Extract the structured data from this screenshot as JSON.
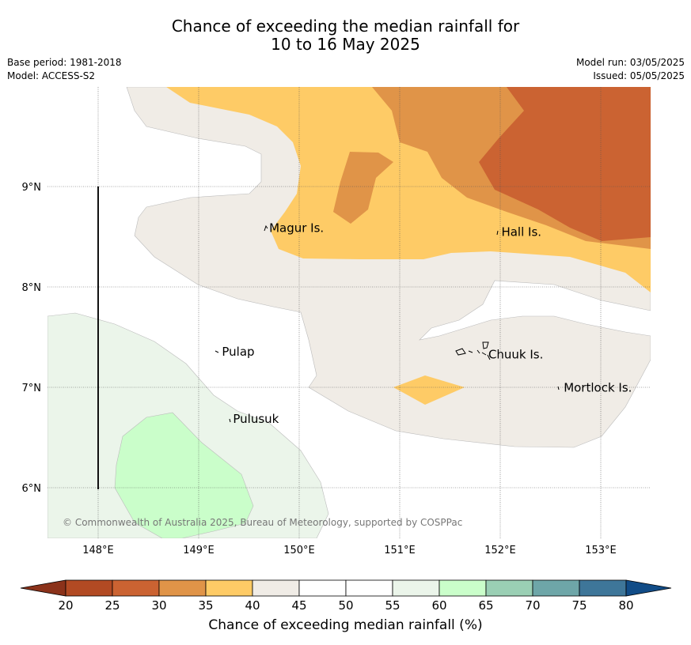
{
  "title": {
    "line1": "Chance of exceeding the median rainfall for",
    "line2": "10 to 16 May 2025"
  },
  "meta": {
    "base_period": "Base period: 1981-2018",
    "model": "Model: ACCESS-S2",
    "model_run": "Model run: 03/05/2025",
    "issued": "Issued: 05/05/2025"
  },
  "map": {
    "extent": {
      "lon": [
        147.5,
        153.5
      ],
      "lat": [
        5.5,
        10.0
      ]
    },
    "lon_ticks": [
      {
        "value": 148,
        "label": "148°E"
      },
      {
        "value": 149,
        "label": "149°E"
      },
      {
        "value": 150,
        "label": "150°E"
      },
      {
        "value": 151,
        "label": "151°E"
      },
      {
        "value": 152,
        "label": "152°E"
      },
      {
        "value": 153,
        "label": "153°E"
      }
    ],
    "lat_ticks": [
      {
        "value": 9,
        "label": "9°N"
      },
      {
        "value": 8,
        "label": "8°N"
      },
      {
        "value": 7,
        "label": "7°N"
      },
      {
        "value": 6,
        "label": "6°N"
      }
    ],
    "places": [
      {
        "name": "Magur Is.",
        "lon": 149.67,
        "lat": 8.57
      },
      {
        "name": "Hall Is.",
        "lon": 151.98,
        "lat": 8.53
      },
      {
        "name": "Pulap",
        "lon": 149.2,
        "lat": 7.34
      },
      {
        "name": "Chuuk Is.",
        "lon": 151.85,
        "lat": 7.31
      },
      {
        "name": "Mortlock Is.",
        "lon": 152.6,
        "lat": 6.98
      },
      {
        "name": "Pulusuk",
        "lon": 149.31,
        "lat": 6.67
      }
    ],
    "copyright": "© Commonwealth of Australia 2025, Bureau of Meteorology, supported by COSPPac"
  },
  "colorbar": {
    "label": "Chance of exceeding median rainfall (%)",
    "ticks": [
      "20",
      "25",
      "30",
      "35",
      "40",
      "45",
      "50",
      "55",
      "60",
      "65",
      "70",
      "75",
      "80"
    ],
    "colors": [
      "#b24a23",
      "#cb6332",
      "#e09448",
      "#fecb66",
      "#f0ece6",
      "#ffffff",
      "#ffffff",
      "#ebf5ea",
      "#cafeca",
      "#9acfb4",
      "#6ea6a8",
      "#3e7699"
    ],
    "under_color": "#8b321a",
    "over_color": "#114c87"
  },
  "palette": {
    "p25_30": "#cb6332",
    "p30_35": "#e09448",
    "p35_40": "#fecb66",
    "p40_45": "#f0ece6",
    "p55_60": "#ebf5ea",
    "p60_65": "#cafeca"
  }
}
